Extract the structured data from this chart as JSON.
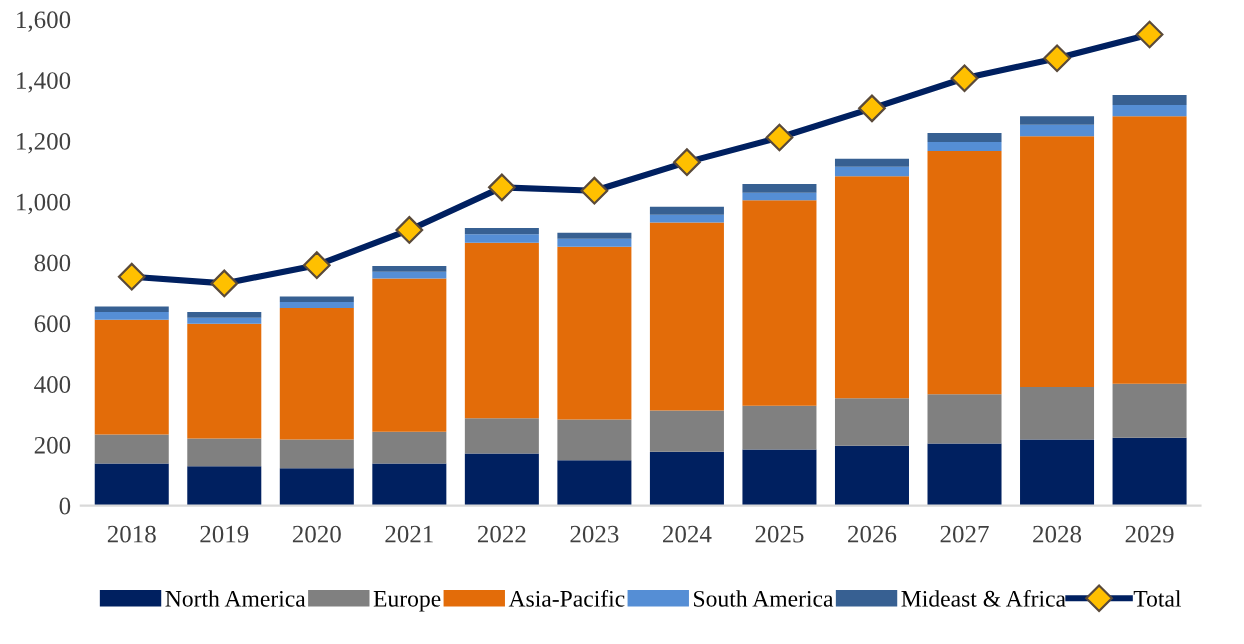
{
  "chart_data": {
    "type": "bar",
    "stacked": true,
    "categories": [
      "2018",
      "2019",
      "2020",
      "2021",
      "2022",
      "2023",
      "2024",
      "2025",
      "2026",
      "2027",
      "2028",
      "2029"
    ],
    "series": [
      {
        "name": "North America",
        "color": "#002060",
        "values": [
          138,
          129,
          123,
          138,
          171,
          149,
          177,
          184,
          197,
          204,
          217,
          223
        ]
      },
      {
        "name": "Europe",
        "color": "#808080",
        "values": [
          96,
          92,
          94,
          105,
          116,
          134,
          136,
          144,
          156,
          162,
          173,
          178
        ]
      },
      {
        "name": "Asia-Pacific",
        "color": "#e36c09",
        "values": [
          377,
          377,
          433,
          504,
          578,
          569,
          618,
          677,
          731,
          801,
          825,
          880
        ]
      },
      {
        "name": "South America",
        "color": "#558ed5",
        "values": [
          26,
          20,
          20,
          22,
          28,
          26,
          26,
          24,
          31,
          29,
          38,
          37
        ]
      },
      {
        "name": "Mideast & Africa",
        "color": "#376092",
        "values": [
          18,
          19,
          18,
          19,
          20,
          20,
          26,
          29,
          26,
          30,
          28,
          33
        ]
      },
      {
        "name": "Total",
        "type": "line",
        "color": "#002060",
        "marker": "diamond",
        "values": [
          753,
          731,
          791,
          907,
          1047,
          1036,
          1130,
          1211,
          1307,
          1406,
          1472,
          1550
        ]
      }
    ],
    "ylim": [
      0,
      1600
    ],
    "yticks": [
      {
        "value": 0,
        "label": "0"
      },
      {
        "value": 200,
        "label": "200"
      },
      {
        "value": 400,
        "label": "400"
      },
      {
        "value": 600,
        "label": "600"
      },
      {
        "value": 800,
        "label": "800"
      },
      {
        "value": 1000,
        "label": "1,000"
      },
      {
        "value": 1200,
        "label": "1,200"
      },
      {
        "value": 1400,
        "label": "1,400"
      },
      {
        "value": 1600,
        "label": "1,600"
      }
    ],
    "grid": false,
    "legend": "bottom"
  }
}
